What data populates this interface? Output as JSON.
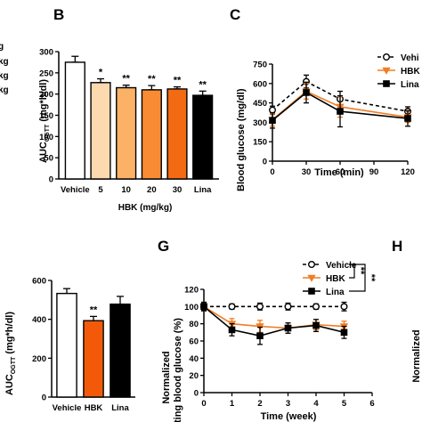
{
  "panels": {
    "b": "B",
    "c": "C",
    "g": "G",
    "h": "H"
  },
  "left_edge_fragments": [
    "g",
    "kg",
    "kg",
    "kg"
  ],
  "colors": {
    "vehicle_fill": "#ffffff",
    "dose5": "#fdd9b0",
    "dose10": "#fbb266",
    "dose20": "#f98b34",
    "dose30": "#f26b12",
    "hbk_bar": "#f25a0a",
    "lina": "#000000",
    "hbk_line": "#f07d24"
  },
  "chart_data": [
    {
      "id": "B",
      "type": "bar",
      "ylabel_main": "AUC",
      "ylabel_sub": "OGTT",
      "ylabel_unit": " (mg*h/dl)",
      "xgroup_label": "HBK (mg/kg)",
      "categories": [
        "Vehicle",
        "5",
        "10",
        "20",
        "30",
        "Lina"
      ],
      "values": [
        275,
        227,
        215,
        210,
        212,
        197
      ],
      "errors": [
        14,
        9,
        6,
        10,
        5,
        10
      ],
      "significance": [
        "",
        "*",
        "**",
        "**",
        "**",
        "**"
      ],
      "ylim": [
        0,
        300
      ],
      "yticks": [
        "0",
        "50",
        "100",
        "150",
        "200",
        "250",
        "300"
      ]
    },
    {
      "id": "C",
      "type": "line",
      "ylabel": "Blood glucose (mg/dl)",
      "xlabel": "Time (min)",
      "xticks": [
        "0",
        "30",
        "60",
        "90",
        "120"
      ],
      "yticks": [
        "0",
        "150",
        "300",
        "450",
        "600",
        "750"
      ],
      "xlim": [
        0,
        120
      ],
      "ylim": [
        0,
        750
      ],
      "x": [
        0,
        30,
        60,
        120
      ],
      "series": [
        {
          "name": "Vehi",
          "values": [
            395,
            615,
            480,
            385
          ],
          "errors": [
            30,
            50,
            60,
            35
          ]
        },
        {
          "name": "HBK",
          "values": [
            320,
            540,
            420,
            340
          ],
          "errors": [
            50,
            60,
            80,
            40
          ]
        },
        {
          "name": "Lina",
          "values": [
            315,
            530,
            385,
            330
          ],
          "errors": [
            60,
            80,
            120,
            60
          ]
        }
      ]
    },
    {
      "id": "F",
      "type": "bar",
      "ylabel_main": "AUC",
      "ylabel_sub": "OGTT",
      "ylabel_unit": " (mg*h/dl)",
      "categories": [
        "Vehicle",
        "HBK",
        "Lina"
      ],
      "values": [
        533,
        393,
        478
      ],
      "errors": [
        25,
        22,
        40
      ],
      "significance": [
        "",
        "**",
        ""
      ],
      "ylim": [
        0,
        600
      ],
      "yticks": [
        "0",
        "200",
        "400",
        "600"
      ]
    },
    {
      "id": "G",
      "type": "line",
      "ylabel_line1": "Normalized",
      "ylabel_line2": "fasting blood glucose (%)",
      "xlabel": "Time (week)",
      "xticks": [
        "0",
        "1",
        "2",
        "3",
        "4",
        "5",
        "6"
      ],
      "yticks": [
        "0",
        "20",
        "40",
        "60",
        "80",
        "100",
        "120"
      ],
      "xlim": [
        0,
        6
      ],
      "ylim": [
        0,
        120
      ],
      "x": [
        0,
        1,
        2,
        3,
        4,
        5
      ],
      "series": [
        {
          "name": "Vehicle",
          "values": [
            100,
            100,
            100,
            100,
            100,
            100
          ],
          "errors": [
            4,
            3,
            4,
            4,
            3,
            5
          ]
        },
        {
          "name": "HBK",
          "values": [
            100,
            80,
            77,
            75,
            79,
            77
          ],
          "errors": [
            5,
            6,
            7,
            6,
            6,
            6
          ]
        },
        {
          "name": "Lina",
          "values": [
            100,
            73,
            66,
            75,
            78,
            70
          ],
          "errors": [
            5,
            7,
            10,
            6,
            7,
            7
          ]
        }
      ],
      "significance": [
        "**",
        "**"
      ]
    },
    {
      "id": "H",
      "type": "line",
      "ylabel_fragment": "Normalized"
    }
  ]
}
